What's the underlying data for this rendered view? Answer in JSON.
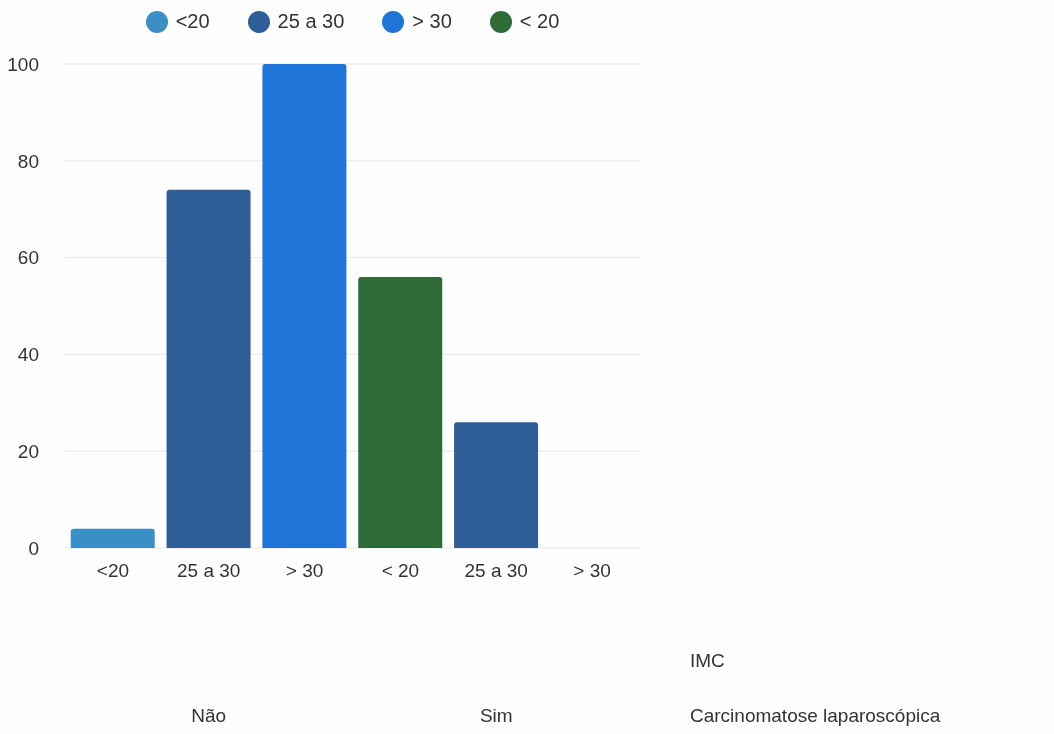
{
  "chart_data": {
    "type": "bar",
    "categories": [
      "<20",
      "25 a 30",
      "> 30",
      "< 20",
      "25 a 30",
      "> 30"
    ],
    "series": [
      {
        "name": "<20",
        "color": "#3a8fc6",
        "values": [
          4,
          null,
          null,
          null,
          null,
          null
        ]
      },
      {
        "name": "25 a 30",
        "color": "#2d5e98",
        "values": [
          null,
          74,
          null,
          null,
          26,
          null
        ]
      },
      {
        "name": "> 30",
        "color": "#1f74d8",
        "values": [
          null,
          null,
          100,
          null,
          null,
          0
        ]
      },
      {
        "name": "< 20",
        "color": "#2e6b36",
        "values": [
          null,
          null,
          null,
          56,
          null,
          null
        ]
      }
    ],
    "stacked": true,
    "ylim": [
      0,
      100
    ],
    "yticks": [
      0,
      20,
      40,
      60,
      80,
      100
    ],
    "grid": "y",
    "legend": "top",
    "xlabel": "IMC",
    "annotations": [
      "Não",
      "Sim",
      "Carcinomatose laparoscópica"
    ]
  }
}
